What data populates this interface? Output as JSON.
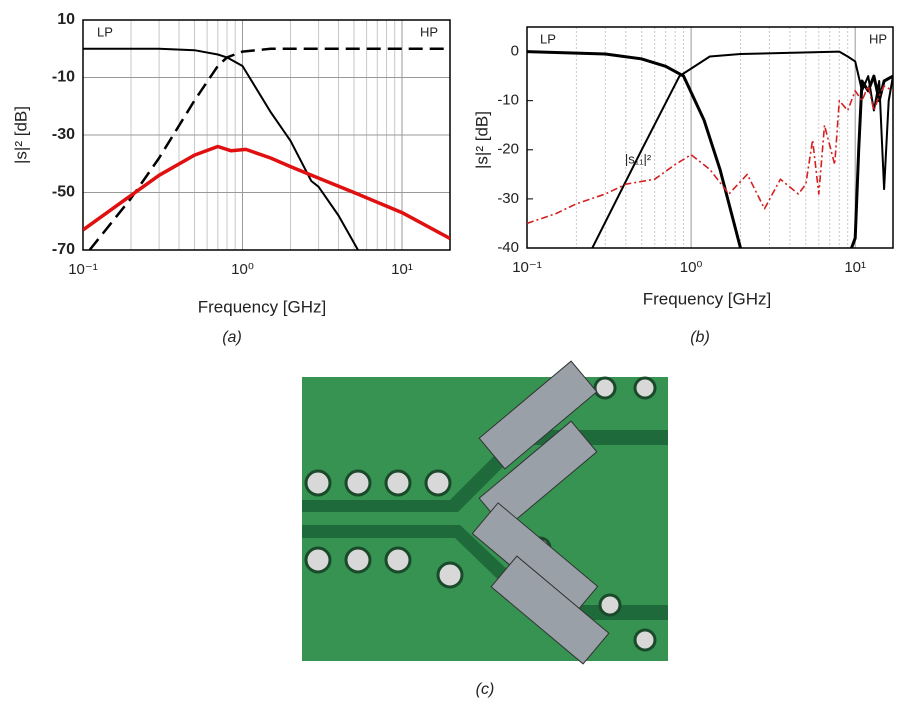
{
  "chart_data": [
    {
      "type": "line",
      "caption": "(a)",
      "x_label": "Frequency [GHz]",
      "y_label": "|s|² [dB]",
      "labels": [
        "LP",
        "HP"
      ],
      "log_x": true,
      "grid": "minor",
      "xlim": [
        0.1,
        20
      ],
      "xticks": [
        {
          "value": 0.1,
          "label": "10⁻¹"
        },
        {
          "value": 1,
          "label": "10⁰"
        },
        {
          "value": 10,
          "label": "10¹"
        }
      ],
      "ylim": [
        -70,
        10
      ],
      "yticks": [
        -70,
        -50,
        -30,
        -10,
        10
      ],
      "series": [
        {
          "color": "#000000",
          "dash": "solid",
          "line_width": 2,
          "x": [
            0.1,
            0.2,
            0.3,
            0.5,
            0.7,
            0.8,
            1,
            1.5,
            2,
            2.7,
            3,
            4,
            5.3
          ],
          "values": [
            0,
            0,
            0,
            -0.5,
            -2,
            -3,
            -6,
            -22,
            -32,
            -46,
            -48,
            -58,
            -70
          ]
        },
        {
          "color": "#000000",
          "dash": "dashed",
          "line_width": 2.5,
          "x": [
            0.11,
            0.2,
            0.3,
            0.5,
            0.7,
            0.8,
            1,
            1.5,
            20
          ],
          "values": [
            -70,
            -52,
            -38,
            -18,
            -6,
            -3,
            -1,
            0,
            0
          ]
        },
        {
          "color": "#e01010",
          "dash": "solid",
          "line_width": 3.5,
          "x": [
            0.1,
            0.2,
            0.3,
            0.5,
            0.7,
            0.85,
            1.05,
            1.5,
            2,
            3,
            5,
            10,
            20
          ],
          "values": [
            -63,
            -51,
            -44,
            -37,
            -34,
            -35.5,
            -35,
            -38,
            -41,
            -45,
            -50,
            -57,
            -66
          ]
        }
      ]
    },
    {
      "type": "line",
      "caption": "(b)",
      "x_label": "Frequency [GHz]",
      "y_label": "|s|² [dB]",
      "labels": [
        "LP",
        "HP"
      ],
      "annotation": "|s₁₁|²",
      "log_x": true,
      "grid": "minor",
      "xlim": [
        0.1,
        17
      ],
      "xticks": [
        {
          "value": 0.1,
          "label": "10⁻¹"
        },
        {
          "value": 1,
          "label": "10⁰"
        },
        {
          "value": 10,
          "label": "10¹"
        }
      ],
      "ylim": [
        -40,
        5
      ],
      "yticks": [
        -40,
        -30,
        -20,
        -10,
        0
      ],
      "series": [
        {
          "color": "#000000",
          "dash": "solid",
          "line_width": 3,
          "x": [
            0.1,
            0.3,
            0.5,
            0.7,
            0.9,
            1.2,
            1.5,
            2,
            5,
            9.5,
            10,
            10.5,
            11,
            12,
            13,
            14,
            15,
            17
          ],
          "values": [
            0,
            -0.5,
            -1.5,
            -3,
            -5,
            -14,
            -24,
            -40,
            null,
            -40,
            -38,
            -20,
            -6,
            -8,
            -5,
            -10,
            -6,
            -5
          ]
        },
        {
          "color": "#000000",
          "dash": "solid",
          "line_width": 2,
          "x": [
            0.25,
            0.5,
            0.85,
            1.3,
            2,
            8,
            9,
            10,
            11,
            12,
            13,
            14,
            15,
            16,
            17
          ],
          "values": [
            -40,
            -20,
            -5,
            -1,
            -0.5,
            0,
            -1,
            -2,
            -8,
            -5,
            -12,
            -6,
            -28,
            -10,
            -5
          ]
        },
        {
          "color": "#d42020",
          "dash": "dashdot",
          "line_width": 1.6,
          "x": [
            0.1,
            0.15,
            0.2,
            0.3,
            0.4,
            0.6,
            0.8,
            1,
            1.3,
            1.7,
            2.2,
            2.8,
            3.5,
            4.5,
            5,
            5.5,
            6,
            6.5,
            7.5,
            8,
            9,
            10,
            11,
            12,
            13,
            14,
            15,
            17
          ],
          "values": [
            -35,
            -33,
            -31,
            -29,
            -27,
            -26,
            -23,
            -21,
            -24,
            -29,
            -25,
            -32,
            -26,
            -29,
            -27,
            -18,
            -29,
            -15,
            -23,
            -10,
            -12,
            -8,
            -10,
            -7,
            -12,
            -9,
            -7,
            -8
          ]
        }
      ]
    }
  ],
  "photo": {
    "caption": "(c)"
  }
}
